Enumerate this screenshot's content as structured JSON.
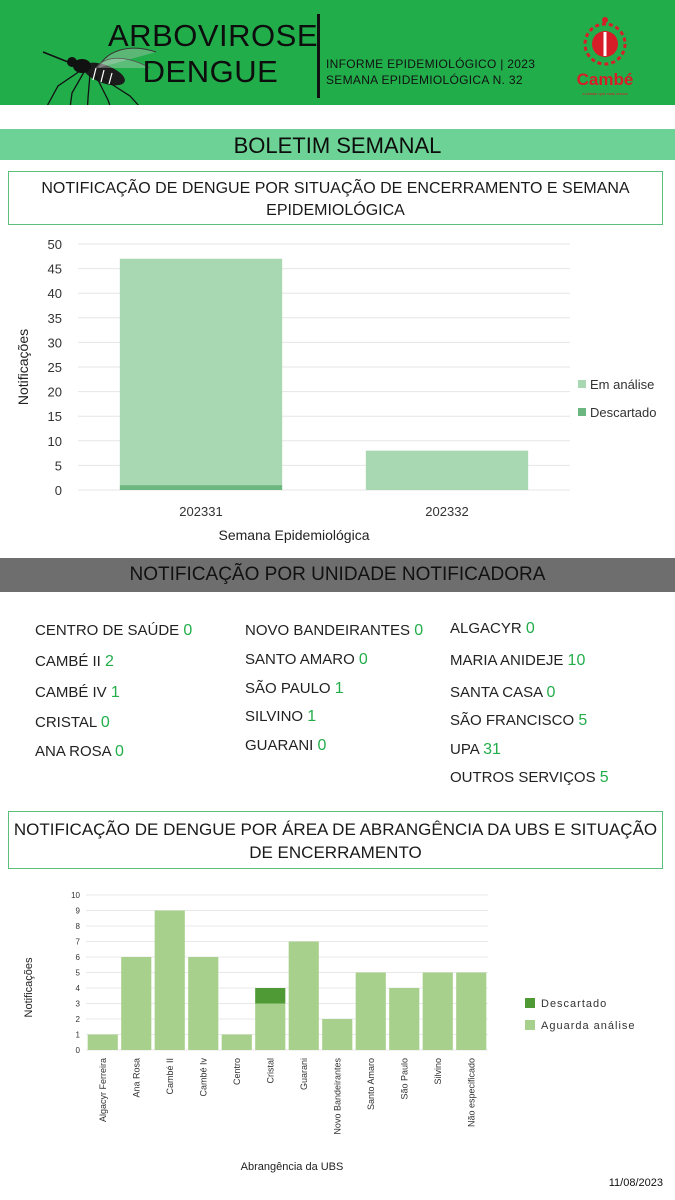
{
  "header": {
    "title_line1": "ARBOVIROSE",
    "title_line2": "DENGUE",
    "info_line1": "INFORME EPIDEMIOLÓGICO | 2023",
    "info_line2": "SEMANA EPIDEMIOLÓGICA  N. 32",
    "logo_text": "Cambé",
    "logo_tagline": "a cidade que mais cresce",
    "colors": {
      "header_bg": "#22ad4b",
      "band": "#6dd295",
      "logo_red": "#d71e28"
    }
  },
  "band_title": "BOLETIM SEMANAL",
  "section1": {
    "title": "NOTIFICAÇÃO DE DENGUE POR SITUAÇÃO DE ENCERRAMENTO E SEMANA EPIDEMIOLÓGICA"
  },
  "section2": {
    "title": "NOTIFICAÇÃO POR UNIDADE NOTIFICADORA",
    "units": [
      {
        "name": "CENTRO  DE SAÚDE",
        "value": "0"
      },
      {
        "name": "CAMBÉ II",
        "value": "2"
      },
      {
        "name": "CAMBÉ IV",
        "value": "1"
      },
      {
        "name": "CRISTAL",
        "value": "0"
      },
      {
        "name": "ANA ROSA",
        "value": "0"
      },
      {
        "name": "NOVO BANDEIRANTES",
        "value": "0"
      },
      {
        "name": "SANTO AMARO",
        "value": "0"
      },
      {
        "name": "SÃO PAULO",
        "value": "1"
      },
      {
        "name": "SILVINO",
        "value": "1"
      },
      {
        "name": "GUARANI",
        "value": "0"
      },
      {
        "name": "ALGACYR",
        "value": "0"
      },
      {
        "name": "MARIA ANIDEJE",
        "value": "10"
      },
      {
        "name": "SANTA CASA",
        "value": "0"
      },
      {
        "name": "SÃO FRANCISCO",
        "value": "5"
      },
      {
        "name": "UPA",
        "value": "31"
      },
      {
        "name": "OUTROS SERVIÇOS",
        "value": "5"
      }
    ]
  },
  "section3": {
    "title": "NOTIFICAÇÃO DE DENGUE POR ÁREA DE ABRANGÊNCIA DA UBS E SITUAÇÃO DE ENCERRAMENTO"
  },
  "footer_date": "11/08/2023",
  "chart_data": [
    {
      "type": "bar",
      "stacked": true,
      "categories": [
        "202331",
        "202332"
      ],
      "series": [
        {
          "name": "Descartado",
          "values": [
            1,
            0
          ],
          "color": "#6cb680"
        },
        {
          "name": "Em análise",
          "values": [
            46,
            8
          ],
          "color": "#a8d8b2"
        }
      ],
      "xlabel": "Semana Epidemiológica",
      "ylabel": "Notificações",
      "ylim": [
        0,
        50
      ],
      "yticks": [
        0,
        5,
        10,
        15,
        20,
        25,
        30,
        35,
        40,
        45,
        50
      ],
      "grid": true,
      "legend": "right",
      "legend_order": [
        "Em análise",
        "Descartado"
      ]
    },
    {
      "type": "bar",
      "stacked": true,
      "categories": [
        "Algacyr Ferreira",
        "Ana Rosa",
        "Cambé II",
        "Cambé Iv",
        "Centro",
        "Cristal",
        "Guarani",
        "Novo Bandeirantes",
        "Santo Amaro",
        "São Paulo",
        "Silvino",
        "Não especificado"
      ],
      "series": [
        {
          "name": "Aguarda análise",
          "values": [
            1,
            6,
            9,
            6,
            1,
            3,
            7,
            2,
            5,
            4,
            5,
            5
          ],
          "color": "#a8d08d"
        },
        {
          "name": "Descartado",
          "values": [
            0,
            0,
            0,
            0,
            0,
            1,
            0,
            0,
            0,
            0,
            0,
            0
          ],
          "color": "#4f9a35"
        }
      ],
      "xlabel": "Abrangência da UBS",
      "ylabel": "Notificações",
      "ylim": [
        0,
        10
      ],
      "yticks": [
        0,
        1,
        2,
        3,
        4,
        5,
        6,
        7,
        8,
        9,
        10
      ],
      "grid": true,
      "legend": "right",
      "legend_order": [
        "Descartado",
        "Aguarda análise"
      ]
    }
  ]
}
